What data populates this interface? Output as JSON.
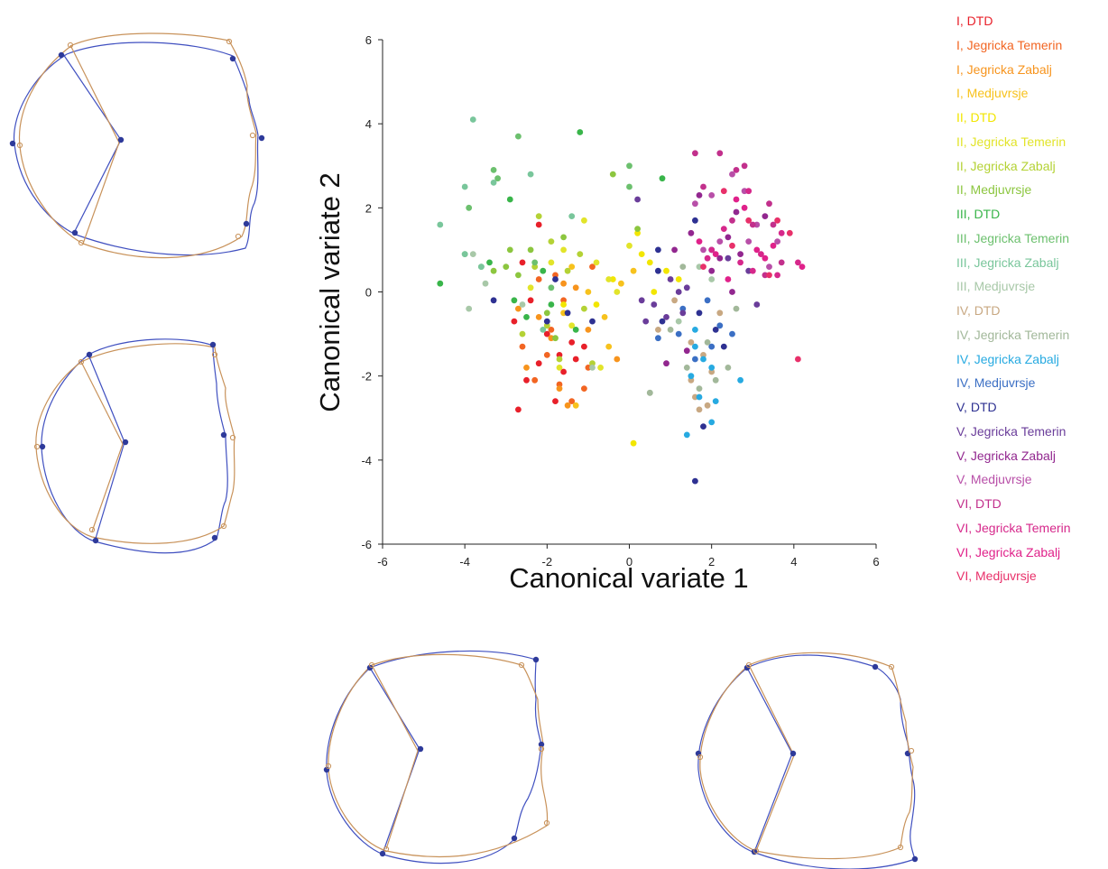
{
  "chart_data": {
    "type": "scatter",
    "title": "",
    "xlabel": "Canonical variate 1",
    "ylabel": "Canonical variate 2",
    "xlim": [
      -6,
      6
    ],
    "ylim": [
      -6,
      6
    ],
    "xticks": [
      "-6",
      "-4",
      "-2",
      "0",
      "2",
      "4",
      "6"
    ],
    "yticks": [
      "6",
      "4",
      "2",
      "0",
      "-2",
      "-4",
      "-6"
    ],
    "legend_position": "right",
    "series": [
      {
        "name": "I, DTD",
        "color": "#e8202a",
        "points": [
          [
            -2.7,
            -2.8
          ],
          [
            -2.5,
            -2.1
          ],
          [
            -2.2,
            -1.7
          ],
          [
            -1.8,
            -2.6
          ],
          [
            -1.4,
            -1.2
          ],
          [
            -2.0,
            -1.0
          ],
          [
            -2.8,
            -0.7
          ],
          [
            -1.6,
            -1.9
          ],
          [
            -2.4,
            -0.2
          ],
          [
            -2.2,
            1.6
          ],
          [
            -1.7,
            -1.5
          ],
          [
            -1.1,
            -1.3
          ],
          [
            -2.6,
            0.7
          ],
          [
            -1.3,
            -1.6
          ]
        ]
      },
      {
        "name": "I, Jegricka Temerin",
        "color": "#f26522",
        "points": [
          [
            -2.0,
            -1.5
          ],
          [
            -1.7,
            -2.2
          ],
          [
            -1.4,
            -2.6
          ],
          [
            -2.3,
            -2.1
          ],
          [
            -1.1,
            -2.3
          ],
          [
            -2.6,
            -1.3
          ],
          [
            -1.9,
            -0.9
          ],
          [
            -1.6,
            -0.2
          ],
          [
            -2.2,
            0.3
          ],
          [
            -1.0,
            -1.8
          ],
          [
            -0.9,
            0.6
          ],
          [
            -1.8,
            0.4
          ]
        ]
      },
      {
        "name": "I, Jegricka Zabalj",
        "color": "#f7941d",
        "points": [
          [
            -2.5,
            -1.8
          ],
          [
            -1.5,
            -2.7
          ],
          [
            -1.7,
            -2.3
          ],
          [
            -2.2,
            -0.6
          ],
          [
            -1.3,
            0.1
          ],
          [
            -0.3,
            -1.6
          ],
          [
            -1.9,
            -1.1
          ],
          [
            -2.7,
            -0.4
          ],
          [
            -1.0,
            -0.9
          ],
          [
            -1.6,
            0.2
          ]
        ]
      },
      {
        "name": "I, Medjuvrsje",
        "color": "#f7c21d",
        "points": [
          [
            -1.3,
            -2.7
          ],
          [
            -1.6,
            -0.5
          ],
          [
            -0.5,
            -1.3
          ],
          [
            -1.0,
            0.0
          ],
          [
            0.1,
            0.5
          ],
          [
            -0.2,
            0.2
          ],
          [
            -1.4,
            0.6
          ],
          [
            -0.6,
            -0.6
          ]
        ]
      },
      {
        "name": "II, DTD",
        "color": "#f2e600",
        "points": [
          [
            0.1,
            -3.6
          ],
          [
            0.2,
            1.4
          ],
          [
            -0.8,
            -0.3
          ],
          [
            0.3,
            0.9
          ],
          [
            0.9,
            0.5
          ],
          [
            -0.4,
            0.3
          ],
          [
            0.6,
            0.0
          ],
          [
            -1.6,
            -0.3
          ],
          [
            0.5,
            0.7
          ],
          [
            1.2,
            0.3
          ]
        ]
      },
      {
        "name": "II, Jegricka Temerin",
        "color": "#e2e42a",
        "points": [
          [
            -1.7,
            -1.8
          ],
          [
            -1.4,
            -0.8
          ],
          [
            -0.7,
            -1.8
          ],
          [
            -1.1,
            1.7
          ],
          [
            -1.9,
            0.7
          ],
          [
            -0.8,
            0.7
          ],
          [
            -2.4,
            0.1
          ],
          [
            -1.6,
            1.0
          ],
          [
            0.0,
            1.1
          ],
          [
            -0.3,
            0.0
          ],
          [
            -0.5,
            0.3
          ]
        ]
      },
      {
        "name": "II, Jegricka Zabalj",
        "color": "#b4d235",
        "points": [
          [
            -2.2,
            1.8
          ],
          [
            -1.5,
            0.5
          ],
          [
            -2.0,
            -0.8
          ],
          [
            -2.3,
            0.6
          ],
          [
            -1.1,
            -0.4
          ],
          [
            -2.6,
            -1.0
          ],
          [
            -1.7,
            -1.6
          ],
          [
            -1.9,
            1.2
          ],
          [
            -1.2,
            0.9
          ],
          [
            -0.9,
            -1.7
          ]
        ]
      },
      {
        "name": "II, Medjuvrsje",
        "color": "#8cc63f",
        "points": [
          [
            -3.3,
            0.5
          ],
          [
            -2.9,
            1.0
          ],
          [
            -2.4,
            1.0
          ],
          [
            -1.6,
            1.3
          ],
          [
            -1.8,
            -1.1
          ],
          [
            -2.7,
            0.4
          ],
          [
            -0.4,
            2.8
          ],
          [
            0.2,
            1.5
          ],
          [
            -2.0,
            -0.5
          ],
          [
            -3.0,
            0.6
          ]
        ]
      },
      {
        "name": "III, DTD",
        "color": "#39b54a",
        "points": [
          [
            -4.6,
            0.2
          ],
          [
            -1.2,
            3.8
          ],
          [
            -2.9,
            2.2
          ],
          [
            -1.9,
            -0.3
          ],
          [
            -2.1,
            0.5
          ],
          [
            0.8,
            2.7
          ],
          [
            -1.3,
            -0.9
          ],
          [
            -3.4,
            0.7
          ],
          [
            -2.5,
            -0.6
          ],
          [
            -2.8,
            -0.2
          ]
        ]
      },
      {
        "name": "III, Jegricka Temerin",
        "color": "#6cc06e",
        "points": [
          [
            -3.9,
            2.0
          ],
          [
            -3.2,
            2.7
          ],
          [
            -2.7,
            3.7
          ],
          [
            -4.0,
            0.9
          ],
          [
            -3.3,
            2.9
          ],
          [
            0.0,
            2.5
          ],
          [
            -1.9,
            0.1
          ],
          [
            -3.6,
            0.6
          ],
          [
            0.0,
            3.0
          ],
          [
            -2.3,
            0.7
          ]
        ]
      },
      {
        "name": "III, Jegricka Zabalj",
        "color": "#79c69b",
        "points": [
          [
            -4.6,
            1.6
          ],
          [
            -3.8,
            4.1
          ],
          [
            -4.0,
            2.5
          ],
          [
            -2.4,
            2.8
          ],
          [
            -1.4,
            1.8
          ],
          [
            -3.6,
            0.6
          ],
          [
            -4.0,
            0.9
          ],
          [
            -3.3,
            2.6
          ],
          [
            -2.1,
            -0.9
          ]
        ]
      },
      {
        "name": "III, Medjuvrsje",
        "color": "#a8c8a8",
        "points": [
          [
            -3.9,
            -0.4
          ],
          [
            -3.5,
            0.2
          ],
          [
            -2.6,
            -0.3
          ],
          [
            1.7,
            0.6
          ],
          [
            2.0,
            0.3
          ],
          [
            -0.9,
            -1.8
          ],
          [
            1.2,
            -0.7
          ],
          [
            0.5,
            -2.4
          ],
          [
            -3.8,
            0.9
          ]
        ]
      },
      {
        "name": "IV, DTD",
        "color": "#c8a882",
        "points": [
          [
            1.7,
            -2.8
          ],
          [
            1.9,
            -2.7
          ],
          [
            1.6,
            -2.5
          ],
          [
            2.0,
            -1.9
          ],
          [
            1.5,
            -1.2
          ],
          [
            0.7,
            -0.9
          ],
          [
            1.8,
            -1.5
          ],
          [
            1.5,
            -2.1
          ],
          [
            2.2,
            -0.5
          ],
          [
            1.1,
            -0.2
          ]
        ]
      },
      {
        "name": "IV, Jegricka Temerin",
        "color": "#a2b89a",
        "points": [
          [
            0.5,
            -2.4
          ],
          [
            1.4,
            -1.8
          ],
          [
            2.4,
            -1.8
          ],
          [
            1.7,
            -2.3
          ],
          [
            1.0,
            -0.9
          ],
          [
            2.1,
            -2.1
          ],
          [
            1.3,
            0.6
          ],
          [
            1.9,
            -1.2
          ],
          [
            2.6,
            -0.4
          ]
        ]
      },
      {
        "name": "IV, Jegricka Zabalj",
        "color": "#27aae1",
        "points": [
          [
            1.4,
            -3.4
          ],
          [
            2.0,
            -3.1
          ],
          [
            1.7,
            -2.5
          ],
          [
            2.1,
            -2.6
          ],
          [
            2.0,
            -1.8
          ],
          [
            1.6,
            -1.3
          ],
          [
            2.7,
            -2.1
          ],
          [
            1.8,
            -1.6
          ],
          [
            1.6,
            -0.9
          ],
          [
            1.5,
            -2.0
          ]
        ]
      },
      {
        "name": "IV, Medjuvrsje",
        "color": "#3b6fc4",
        "points": [
          [
            1.9,
            -0.2
          ],
          [
            2.5,
            -1.0
          ],
          [
            1.2,
            -1.0
          ],
          [
            1.6,
            -1.6
          ],
          [
            2.2,
            -0.8
          ],
          [
            1.3,
            -0.4
          ],
          [
            2.0,
            -1.3
          ],
          [
            0.7,
            -1.1
          ]
        ]
      },
      {
        "name": "V, DTD",
        "color": "#2e3192",
        "points": [
          [
            1.6,
            -4.5
          ],
          [
            1.8,
            -3.2
          ],
          [
            1.7,
            -0.5
          ],
          [
            0.8,
            -0.7
          ],
          [
            -3.3,
            -0.2
          ],
          [
            -1.5,
            -0.5
          ],
          [
            -2.0,
            -0.7
          ],
          [
            1.6,
            1.7
          ],
          [
            2.3,
            -1.3
          ],
          [
            0.7,
            1.0
          ],
          [
            2.1,
            -0.9
          ],
          [
            -0.9,
            -0.7
          ],
          [
            0.7,
            0.5
          ],
          [
            2.0,
            1.0
          ],
          [
            -1.8,
            0.3
          ]
        ]
      },
      {
        "name": "V, Jegricka Temerin",
        "color": "#6a3d9a",
        "points": [
          [
            0.3,
            -0.2
          ],
          [
            1.2,
            0.0
          ],
          [
            0.6,
            -0.3
          ],
          [
            1.4,
            0.1
          ],
          [
            0.9,
            -0.6
          ],
          [
            2.4,
            0.8
          ],
          [
            2.9,
            0.5
          ],
          [
            3.1,
            -0.3
          ],
          [
            0.4,
            -0.7
          ],
          [
            1.3,
            -0.5
          ],
          [
            0.2,
            2.2
          ],
          [
            1.0,
            0.3
          ]
        ]
      },
      {
        "name": "V, Jegricka Zabalj",
        "color": "#92278f",
        "points": [
          [
            1.5,
            1.4
          ],
          [
            2.4,
            1.3
          ],
          [
            1.7,
            2.3
          ],
          [
            2.0,
            0.5
          ],
          [
            3.3,
            1.8
          ],
          [
            2.2,
            0.8
          ],
          [
            2.6,
            1.9
          ],
          [
            0.9,
            -1.7
          ],
          [
            1.1,
            1.0
          ],
          [
            2.7,
            0.9
          ],
          [
            1.4,
            -1.4
          ],
          [
            2.5,
            0.0
          ]
        ]
      },
      {
        "name": "V, Medjuvrsje",
        "color": "#b84fa8",
        "points": [
          [
            2.0,
            2.3
          ],
          [
            2.5,
            2.8
          ],
          [
            2.8,
            2.4
          ],
          [
            3.1,
            1.6
          ],
          [
            1.8,
            1.0
          ],
          [
            3.4,
            0.6
          ],
          [
            2.2,
            1.2
          ],
          [
            3.6,
            1.2
          ],
          [
            1.6,
            2.1
          ],
          [
            2.9,
            1.2
          ]
        ]
      },
      {
        "name": "VI, DTD",
        "color": "#c2308c",
        "points": [
          [
            1.6,
            3.3
          ],
          [
            2.2,
            3.3
          ],
          [
            2.8,
            3.0
          ],
          [
            3.4,
            2.1
          ],
          [
            2.6,
            2.9
          ],
          [
            3.0,
            1.6
          ],
          [
            1.8,
            2.5
          ],
          [
            2.5,
            1.7
          ],
          [
            3.7,
            0.7
          ],
          [
            3.3,
            0.4
          ],
          [
            3.5,
            1.6
          ]
        ]
      },
      {
        "name": "VI, Jegricka Temerin",
        "color": "#d6288b",
        "points": [
          [
            2.0,
            1.0
          ],
          [
            3.2,
            0.9
          ],
          [
            3.7,
            1.4
          ],
          [
            2.3,
            1.5
          ],
          [
            2.9,
            2.4
          ],
          [
            1.9,
            0.8
          ],
          [
            4.1,
            0.7
          ],
          [
            3.6,
            0.4
          ],
          [
            2.7,
            0.7
          ],
          [
            3.0,
            0.5
          ]
        ]
      },
      {
        "name": "VI, Jegricka Zabalj",
        "color": "#e0218a",
        "points": [
          [
            1.7,
            1.2
          ],
          [
            2.8,
            2.0
          ],
          [
            3.3,
            0.8
          ],
          [
            2.1,
            0.9
          ],
          [
            2.6,
            2.2
          ],
          [
            3.5,
            1.1
          ],
          [
            4.2,
            0.6
          ],
          [
            2.4,
            0.3
          ],
          [
            3.1,
            1.0
          ]
        ]
      },
      {
        "name": "VI, Medjuvrsje",
        "color": "#e8306a",
        "points": [
          [
            4.1,
            -1.6
          ],
          [
            1.8,
            0.6
          ],
          [
            2.9,
            1.7
          ],
          [
            3.6,
            1.7
          ],
          [
            2.3,
            2.4
          ],
          [
            3.4,
            0.4
          ],
          [
            2.5,
            1.1
          ],
          [
            3.9,
            1.4
          ]
        ]
      }
    ]
  }
}
